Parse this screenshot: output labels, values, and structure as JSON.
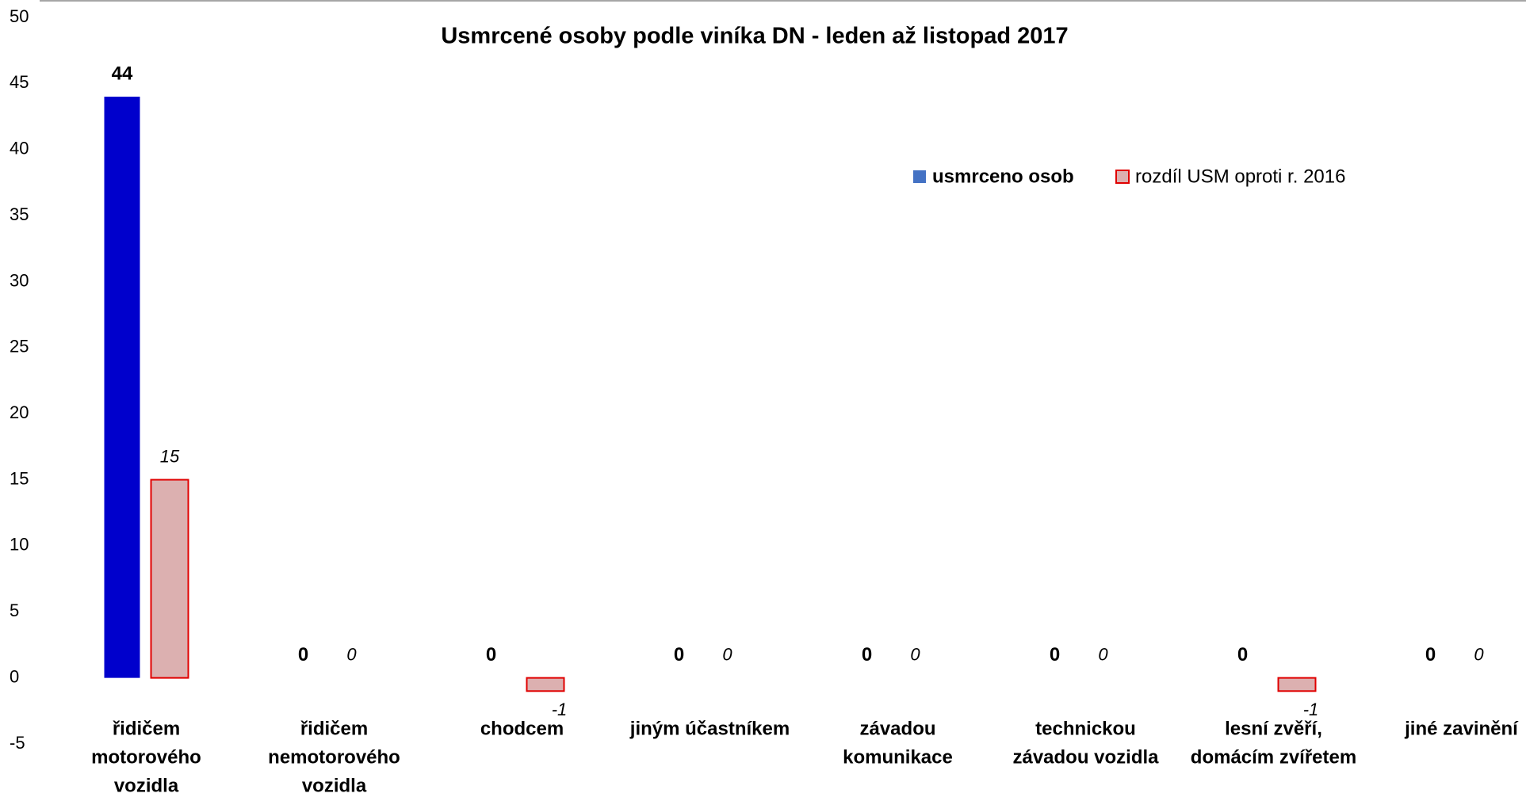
{
  "chart_data": {
    "type": "bar",
    "title": "Usmrcené osoby podle viníka DN - leden až listopad 2017",
    "categories": [
      [
        "řidičem",
        "motorového",
        "vozidla"
      ],
      [
        "řidičem",
        "nemotorového",
        "vozidla"
      ],
      [
        "chodcem"
      ],
      [
        "jiným účastníkem"
      ],
      [
        "závadou",
        "komunikace"
      ],
      [
        "technickou",
        "závadou vozidla"
      ],
      [
        "lesní zvěří,",
        "domácím zvířetem"
      ],
      [
        "jiné zavinění"
      ]
    ],
    "series": [
      {
        "name": "usmrceno osob",
        "color": "#0000cc",
        "values": [
          44,
          0,
          0,
          0,
          0,
          0,
          0,
          0
        ]
      },
      {
        "name": "rozdíl USM oproti r. 2016",
        "color": "#dcb0b0",
        "values": [
          15,
          0,
          -1,
          0,
          0,
          0,
          -1,
          0
        ]
      }
    ],
    "ylim": [
      -5,
      50
    ],
    "yticks": [
      -5,
      0,
      5,
      10,
      15,
      20,
      25,
      30,
      35,
      40,
      45,
      50
    ],
    "grid": false,
    "legend": "top-right"
  }
}
